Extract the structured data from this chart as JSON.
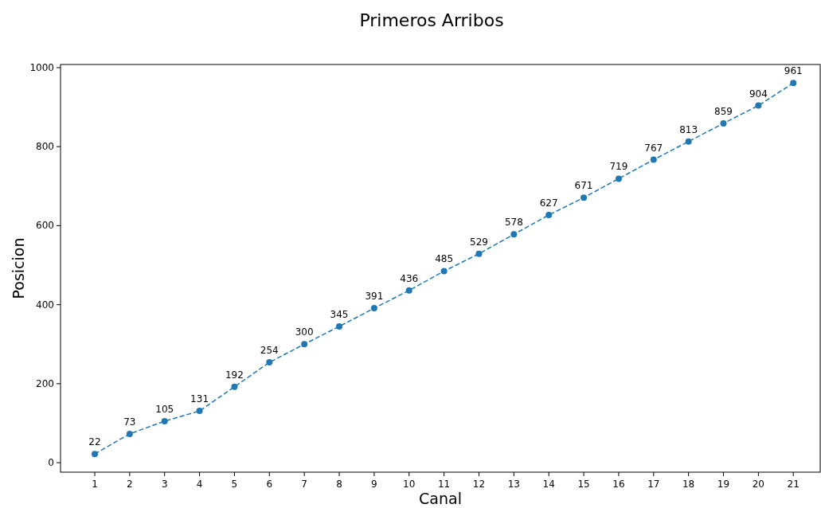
{
  "chart_data": {
    "type": "line",
    "title": "Primeros Arribos",
    "xlabel": "Canal",
    "ylabel": "Posicion",
    "x": [
      1,
      2,
      3,
      4,
      5,
      6,
      7,
      8,
      9,
      10,
      11,
      12,
      13,
      14,
      15,
      16,
      17,
      18,
      19,
      20,
      21
    ],
    "series": [
      {
        "color": "#1f77b4",
        "values": [
          22,
          73,
          105,
          131,
          192,
          254,
          300,
          345,
          391,
          436,
          485,
          529,
          578,
          627,
          671,
          719,
          767,
          813,
          859,
          904,
          961
        ]
      }
    ],
    "xlim": [
      0.02,
      21.77
    ],
    "xticks": [
      1,
      2,
      3,
      4,
      5,
      6,
      7,
      8,
      9,
      10,
      11,
      12,
      13,
      14,
      15,
      16,
      17,
      18,
      19,
      20,
      21
    ],
    "ylim": [
      -24,
      1008
    ],
    "yticks": [
      0,
      200,
      400,
      600,
      800,
      1000
    ],
    "data_labels": true,
    "marker": "circle",
    "line_style": "dashed",
    "grid": false
  }
}
